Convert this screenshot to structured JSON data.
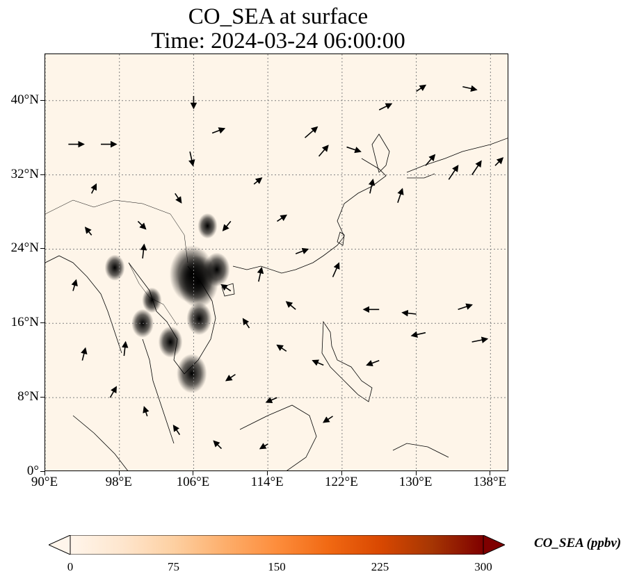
{
  "title_line1": "CO_SEA at surface",
  "title_line2": "Time: 2024-03-24 06:00:00",
  "map": {
    "lon_range": [
      90,
      140
    ],
    "lat_range": [
      0,
      45
    ],
    "lon_ticks": [
      {
        "value": 90,
        "label": "90°E"
      },
      {
        "value": 98,
        "label": "98°E"
      },
      {
        "value": 106,
        "label": "106°E"
      },
      {
        "value": 114,
        "label": "114°E"
      },
      {
        "value": 122,
        "label": "122°E"
      },
      {
        "value": 130,
        "label": "130°E"
      },
      {
        "value": 138,
        "label": "138°E"
      }
    ],
    "lat_ticks": [
      {
        "value": 0,
        "label": "0°"
      },
      {
        "value": 8,
        "label": "8°N"
      },
      {
        "value": 16,
        "label": "16°N"
      },
      {
        "value": 24,
        "label": "24°N"
      },
      {
        "value": 32,
        "label": "32°N"
      },
      {
        "value": 40,
        "label": "40°N"
      }
    ],
    "gridlines": true,
    "background_color": "#fef5e9",
    "hotspots": [
      {
        "lon": 105.8,
        "lat": 21.3,
        "value": 300
      },
      {
        "lon": 106.5,
        "lat": 20.5,
        "value": 260
      },
      {
        "lon": 108.5,
        "lat": 21.8,
        "value": 120
      },
      {
        "lon": 105.8,
        "lat": 10.6,
        "value": 160
      },
      {
        "lon": 106.6,
        "lat": 16.5,
        "value": 110
      },
      {
        "lon": 103.5,
        "lat": 14.0,
        "value": 100
      },
      {
        "lon": 100.5,
        "lat": 16.0,
        "value": 80
      },
      {
        "lon": 97.5,
        "lat": 22.0,
        "value": 60
      },
      {
        "lon": 107.5,
        "lat": 26.5,
        "value": 55
      },
      {
        "lon": 101.5,
        "lat": 18.5,
        "value": 55
      }
    ],
    "wind_vectors": [
      {
        "lon": 92.5,
        "lat": 35.3,
        "u": 1.0,
        "v": 0.0
      },
      {
        "lon": 96.0,
        "lat": 35.3,
        "u": 1.0,
        "v": 0.0
      },
      {
        "lon": 95.0,
        "lat": 30.0,
        "u": 0.3,
        "v": 0.6
      },
      {
        "lon": 100.0,
        "lat": 27.0,
        "u": 0.5,
        "v": -0.5
      },
      {
        "lon": 104.0,
        "lat": 30.0,
        "u": 0.4,
        "v": -0.6
      },
      {
        "lon": 106.0,
        "lat": 40.5,
        "u": 0.0,
        "v": -0.8
      },
      {
        "lon": 105.6,
        "lat": 34.5,
        "u": 0.2,
        "v": -0.9
      },
      {
        "lon": 108.0,
        "lat": 36.5,
        "u": 0.8,
        "v": 0.3
      },
      {
        "lon": 110.0,
        "lat": 27.0,
        "u": -0.5,
        "v": -0.6
      },
      {
        "lon": 112.5,
        "lat": 31.0,
        "u": 0.5,
        "v": 0.4
      },
      {
        "lon": 118.0,
        "lat": 36.0,
        "u": 0.8,
        "v": 0.7
      },
      {
        "lon": 119.5,
        "lat": 34.0,
        "u": 0.6,
        "v": 0.7
      },
      {
        "lon": 122.5,
        "lat": 35.0,
        "u": 0.9,
        "v": -0.3
      },
      {
        "lon": 125.0,
        "lat": 30.0,
        "u": 0.2,
        "v": 0.9
      },
      {
        "lon": 128.0,
        "lat": 29.0,
        "u": 0.3,
        "v": 0.9
      },
      {
        "lon": 131.0,
        "lat": 33.0,
        "u": 0.6,
        "v": 0.7
      },
      {
        "lon": 133.5,
        "lat": 31.5,
        "u": 0.6,
        "v": 0.9
      },
      {
        "lon": 136.0,
        "lat": 32.0,
        "u": 0.6,
        "v": 0.9
      },
      {
        "lon": 138.5,
        "lat": 33.0,
        "u": 0.5,
        "v": 0.5
      },
      {
        "lon": 126.0,
        "lat": 39.0,
        "u": 0.8,
        "v": 0.4
      },
      {
        "lon": 130.0,
        "lat": 41.0,
        "u": 0.6,
        "v": 0.4
      },
      {
        "lon": 135.0,
        "lat": 41.5,
        "u": 0.9,
        "v": -0.2
      },
      {
        "lon": 113.0,
        "lat": 20.5,
        "u": 0.2,
        "v": 0.9
      },
      {
        "lon": 117.0,
        "lat": 17.5,
        "u": -0.6,
        "v": 0.5
      },
      {
        "lon": 121.0,
        "lat": 21.0,
        "u": 0.4,
        "v": 0.9
      },
      {
        "lon": 126.0,
        "lat": 17.5,
        "u": -1.0,
        "v": 0.0
      },
      {
        "lon": 130.0,
        "lat": 17.0,
        "u": -0.9,
        "v": 0.1
      },
      {
        "lon": 134.5,
        "lat": 17.5,
        "u": 0.9,
        "v": 0.3
      },
      {
        "lon": 136.0,
        "lat": 14.0,
        "u": 1.0,
        "v": 0.2
      },
      {
        "lon": 131.0,
        "lat": 15.0,
        "u": -0.9,
        "v": -0.2
      },
      {
        "lon": 126.0,
        "lat": 12.0,
        "u": -0.8,
        "v": -0.3
      },
      {
        "lon": 120.0,
        "lat": 11.5,
        "u": -0.7,
        "v": 0.3
      },
      {
        "lon": 116.0,
        "lat": 13.0,
        "u": -0.6,
        "v": 0.4
      },
      {
        "lon": 112.0,
        "lat": 15.5,
        "u": -0.4,
        "v": 0.6
      },
      {
        "lon": 110.5,
        "lat": 10.5,
        "u": -0.6,
        "v": -0.4
      },
      {
        "lon": 115.0,
        "lat": 8.0,
        "u": -0.7,
        "v": -0.3
      },
      {
        "lon": 121.0,
        "lat": 6.0,
        "u": -0.6,
        "v": -0.4
      },
      {
        "lon": 98.5,
        "lat": 12.5,
        "u": 0.1,
        "v": 0.9
      },
      {
        "lon": 94.0,
        "lat": 12.0,
        "u": 0.2,
        "v": 0.8
      },
      {
        "lon": 97.0,
        "lat": 8.0,
        "u": 0.4,
        "v": 0.7
      },
      {
        "lon": 101.0,
        "lat": 6.0,
        "u": -0.2,
        "v": 0.6
      },
      {
        "lon": 104.5,
        "lat": 4.0,
        "u": -0.4,
        "v": 0.6
      },
      {
        "lon": 109.0,
        "lat": 2.5,
        "u": -0.5,
        "v": 0.5
      },
      {
        "lon": 114.0,
        "lat": 3.0,
        "u": -0.5,
        "v": -0.3
      },
      {
        "lon": 100.5,
        "lat": 23.0,
        "u": 0.1,
        "v": 0.9
      },
      {
        "lon": 95.0,
        "lat": 25.5,
        "u": -0.4,
        "v": 0.5
      },
      {
        "lon": 93.0,
        "lat": 19.5,
        "u": 0.2,
        "v": 0.7
      },
      {
        "lon": 115.0,
        "lat": 27.0,
        "u": 0.6,
        "v": 0.4
      },
      {
        "lon": 117.0,
        "lat": 23.5,
        "u": 0.8,
        "v": 0.3
      },
      {
        "lon": 110.0,
        "lat": 19.5,
        "u": -0.6,
        "v": 0.4
      }
    ]
  },
  "colorbar": {
    "label": "CO_SEA (ppbv)",
    "vmin": 0,
    "vmax": 300,
    "ticks": [
      {
        "value": 0,
        "label": "0"
      },
      {
        "value": 75,
        "label": "75"
      },
      {
        "value": 150,
        "label": "150"
      },
      {
        "value": 225,
        "label": "225"
      },
      {
        "value": 300,
        "label": "300"
      }
    ],
    "colors": [
      "#fff5eb",
      "#fee6ce",
      "#fdd0a2",
      "#fdae6b",
      "#fd8d3c",
      "#f16913",
      "#d94801",
      "#a63603",
      "#7f0000"
    ]
  }
}
